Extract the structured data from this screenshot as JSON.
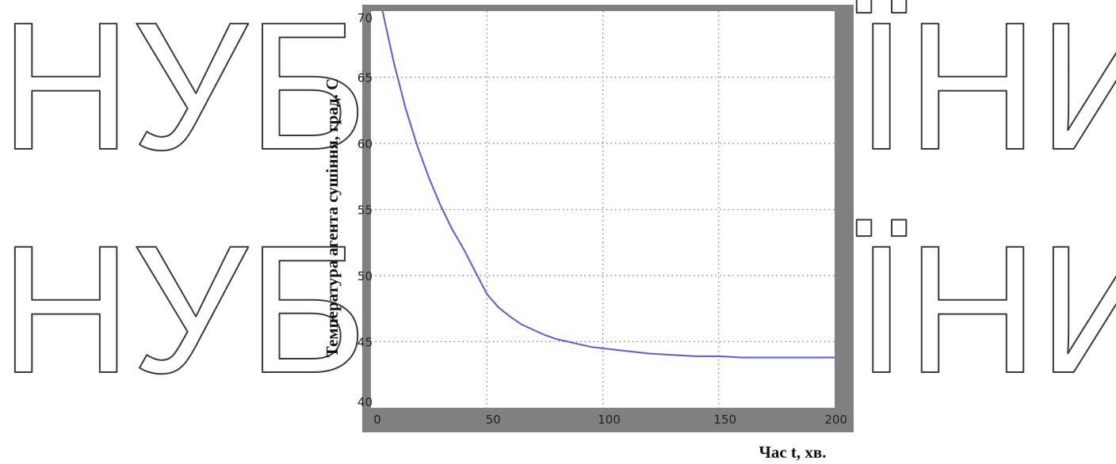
{
  "watermark": {
    "text_left": "НУБ",
    "text_right": "ЇНИ"
  },
  "chart_data": {
    "type": "line",
    "title": "",
    "xlabel": "Час t, хв.",
    "ylabel": "Температура агента сушіння, град. С",
    "xlim": [
      0,
      200
    ],
    "ylim": [
      40,
      70
    ],
    "xticks": [
      0,
      50,
      100,
      150,
      200
    ],
    "yticks": [
      40,
      45,
      50,
      55,
      60,
      65,
      70
    ],
    "grid": true,
    "colors": {
      "line": "#5a5ae6",
      "frame": "#808080",
      "plot_bg": "#ffffff",
      "grid": "#777777"
    },
    "series": [
      {
        "x": [
          5,
          10,
          15,
          20,
          25,
          30,
          35,
          40,
          45,
          50,
          55,
          60,
          65,
          70,
          75,
          80,
          85,
          90,
          95,
          100,
          110,
          120,
          130,
          140,
          150,
          160,
          170,
          180,
          190,
          200
        ],
        "values": [
          70.0,
          66.0,
          62.6,
          59.8,
          57.4,
          55.3,
          53.5,
          52.0,
          50.3,
          48.6,
          47.6,
          46.9,
          46.3,
          45.9,
          45.5,
          45.2,
          45.0,
          44.8,
          44.6,
          44.5,
          44.3,
          44.1,
          44.0,
          43.9,
          43.9,
          43.8,
          43.8,
          43.8,
          43.8,
          43.8
        ]
      }
    ]
  }
}
